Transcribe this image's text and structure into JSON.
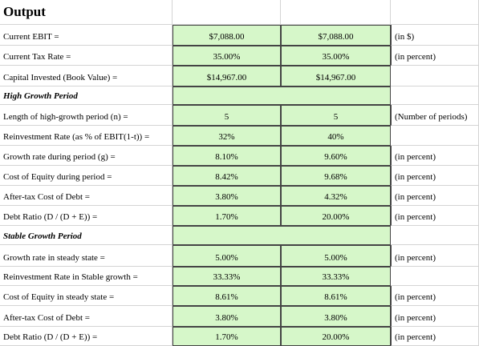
{
  "title": "Output",
  "rows": [
    {
      "label": "Current EBIT =",
      "values": [
        "$7,088.00",
        "$7,088.00"
      ],
      "note": "(in $)"
    },
    {
      "label": "Current Tax Rate =",
      "values": [
        "35.00%",
        "35.00%"
      ],
      "note": "(in percent)"
    },
    {
      "label": "Capital Invested (Book Value) =",
      "values": [
        "$14,967.00",
        "$14,967.00"
      ]
    },
    {
      "section": "High Growth Period"
    },
    {
      "label": "Length of high-growth period (n) =",
      "values": [
        "5",
        "5"
      ],
      "note": "(Number of periods)"
    },
    {
      "label": "Reinvestment Rate (as % of EBIT(1-t)) =",
      "values": [
        "32%",
        "40%"
      ]
    },
    {
      "label": "Growth rate during period (g) =",
      "values": [
        "8.10%",
        "9.60%"
      ],
      "note": "(in percent)"
    },
    {
      "label": "Cost of Equity during period  =",
      "values": [
        "8.42%",
        "9.68%"
      ],
      "note": "(in percent)"
    },
    {
      "label": "After-tax Cost of Debt =",
      "values": [
        "3.80%",
        "4.32%"
      ],
      "note": "(in percent)"
    },
    {
      "label": "Debt Ratio (D / (D + E)) =",
      "values": [
        "1.70%",
        "20.00%"
      ],
      "note": "(in percent)"
    },
    {
      "section": "Stable Growth Period"
    },
    {
      "label": "Growth rate in steady state =",
      "values": [
        "5.00%",
        "5.00%"
      ],
      "note": "(in percent)"
    },
    {
      "label": "Reinvestment Rate in Stable growth =",
      "values": [
        "33.33%",
        "33.33%"
      ]
    },
    {
      "label": "Cost of Equity in steady state =",
      "values": [
        "8.61%",
        "8.61%"
      ],
      "note": "(in percent)"
    },
    {
      "label": "After-tax Cost of Debt =",
      "values": [
        "3.80%",
        "3.80%"
      ],
      "note": "(in percent)"
    },
    {
      "label": "Debt Ratio (D / (D + E)) =",
      "values": [
        "1.70%",
        "20.00%"
      ],
      "note": "(in percent)"
    }
  ]
}
